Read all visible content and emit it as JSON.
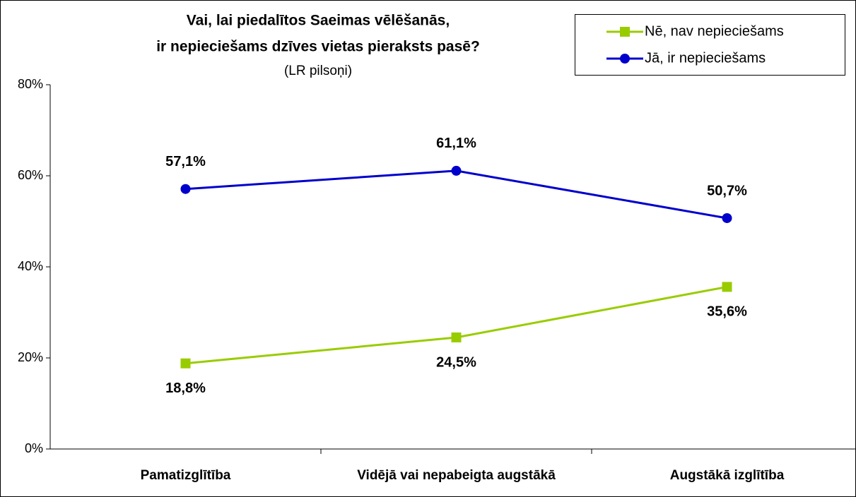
{
  "chart_data": {
    "type": "line",
    "title": [
      "Vai, lai piedalītos Saeimas vēlēšanās,",
      "ir nepieciešams dzīves vietas pieraksts pasē?"
    ],
    "subtitle": "(LR pilsoņi)",
    "categories": [
      "Pamatizglītība",
      "Vidējā vai nepabeigta augstākā",
      "Augstākā izglītība"
    ],
    "series": [
      {
        "name": "Nē, nav nepieciešams",
        "color": "#99cc00",
        "marker": "square",
        "values": [
          18.8,
          24.5,
          35.6
        ],
        "value_labels": [
          "18,8%",
          "24,5%",
          "35,6%"
        ]
      },
      {
        "name": "Jā, ir nepieciešams",
        "color": "#0000cc",
        "marker": "circle",
        "values": [
          57.1,
          61.1,
          50.7
        ],
        "value_labels": [
          "57,1%",
          "61,1%",
          "50,7%"
        ]
      }
    ],
    "ylim": [
      0,
      80
    ],
    "yticks": [
      {
        "value": 0,
        "label": "0%"
      },
      {
        "value": 20,
        "label": "20%"
      },
      {
        "value": 40,
        "label": "40%"
      },
      {
        "value": 60,
        "label": "60%"
      },
      {
        "value": 80,
        "label": "80%"
      }
    ],
    "legend": "top-right"
  }
}
